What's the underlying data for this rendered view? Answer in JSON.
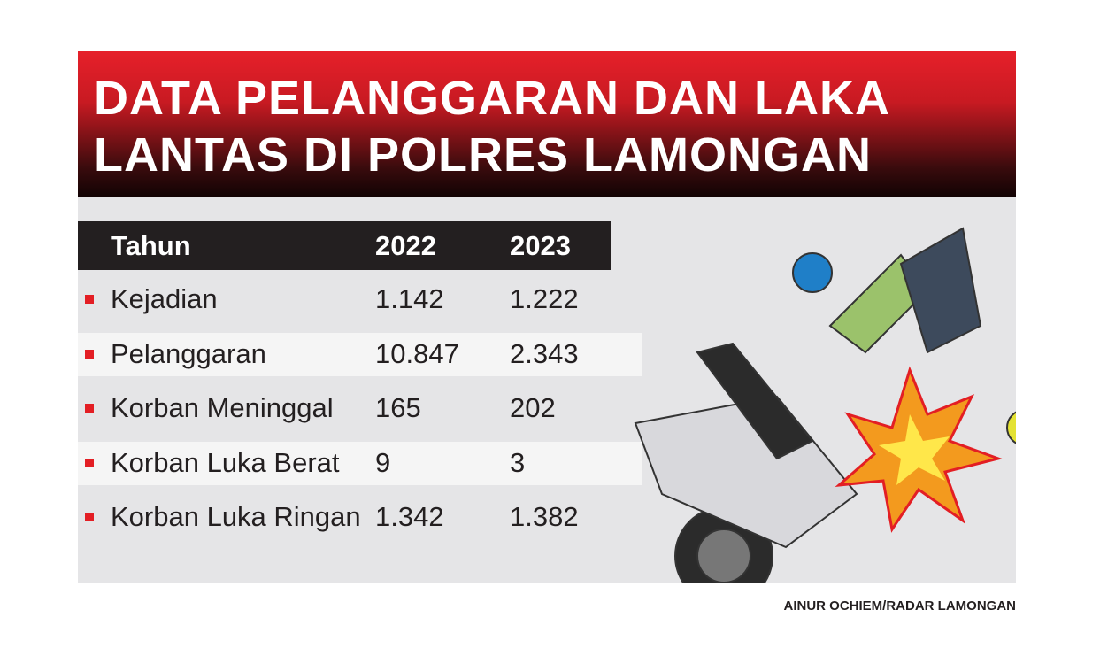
{
  "header": {
    "title_lines": [
      "DATA PELANGGARAN DAN LAKA",
      "LANTAS DI POLRES LAMONGAN"
    ]
  },
  "table": {
    "header": [
      "Tahun",
      "2022",
      "2023"
    ],
    "rows": [
      [
        "Kejadian",
        "1.142",
        "1.222"
      ],
      [
        "Pelanggaran",
        "10.847",
        "2.343"
      ],
      [
        "Korban Meninggal",
        "165",
        "202"
      ],
      [
        "Korban Luka Berat",
        "9",
        "3"
      ],
      [
        "Korban Luka Ringan",
        "1.342",
        "1.382"
      ]
    ]
  },
  "credit": "AINUR OCHIEM/RADAR LAMONGAN"
}
